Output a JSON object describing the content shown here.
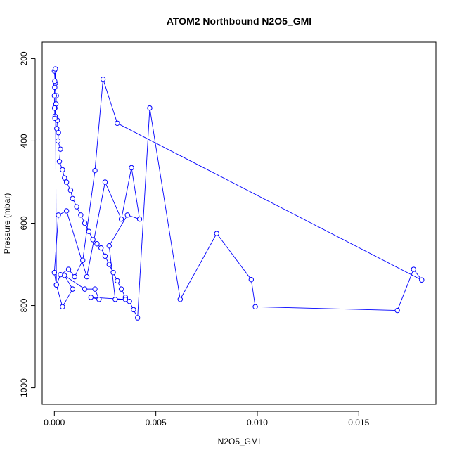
{
  "chart_data": {
    "type": "scatter",
    "title": "ATOM2 Northbound N2O5_GMI",
    "xlabel": "N2O5_GMI",
    "ylabel": "Pressure (mbar)",
    "xlim": [
      -0.0006,
      0.0188
    ],
    "ylim": [
      1040,
      160
    ],
    "y_reversed": true,
    "x_ticks": [
      0.0,
      0.005,
      0.01,
      0.015
    ],
    "x_tick_labels": [
      "0.000",
      "0.005",
      "0.010",
      "0.015"
    ],
    "y_ticks": [
      200,
      400,
      600,
      800,
      1000
    ],
    "y_tick_labels": [
      "200",
      "400",
      "600",
      "800",
      "1000"
    ],
    "grid": false,
    "legend": "none",
    "series_color": "#0000ff",
    "series": [
      {
        "x": [
          0.0,
          5e-05,
          2e-05,
          0.0001,
          8e-05,
          3e-05,
          4e-05,
          0.00015,
          0.00012,
          0.0002,
          0.00018,
          0.0003,
          0.00025,
          0.0004,
          0.0005,
          0.0006,
          0.0008,
          0.0009,
          0.0011,
          0.0013,
          0.0015,
          0.0017,
          0.0019,
          0.0021,
          0.0023,
          0.0025,
          0.0027,
          0.0029,
          0.0031,
          0.0033,
          0.0035,
          0.0037,
          0.0039,
          0.0041,
          0.0047,
          0.0062,
          0.008,
          0.0097,
          0.0099,
          0.0169,
          0.0177,
          0.0181,
          0.0031,
          0.0024,
          0.002,
          0.0014,
          0.001,
          0.0007,
          0.0003,
          0.0001,
          0.0004,
          0.0009,
          0.0005,
          0.0015,
          0.002,
          0.0022,
          0.0018,
          0.0035,
          0.003,
          0.0027,
          0.0036,
          0.0042,
          0.0038,
          0.0033,
          0.0025,
          0.0016,
          0.0006,
          0.0002,
          0.0,
          0.0001,
          5e-05,
          2e-05,
          0.0,
          1e-05,
          3e-05
        ],
        "y": [
          230,
          260,
          270,
          290,
          310,
          320,
          340,
          350,
          370,
          380,
          400,
          420,
          450,
          470,
          490,
          500,
          520,
          540,
          560,
          580,
          600,
          620,
          640,
          650,
          660,
          680,
          700,
          720,
          740,
          760,
          780,
          790,
          810,
          830,
          320,
          785,
          625,
          737,
          803,
          812,
          712,
          738,
          357,
          250,
          472,
          690,
          730,
          712,
          725,
          750,
          803,
          760,
          727,
          760,
          760,
          785,
          780,
          785,
          785,
          655,
          580,
          590,
          465,
          590,
          500,
          730,
          570,
          580,
          720,
          750,
          225,
          255,
          290,
          320,
          345
        ]
      }
    ]
  }
}
